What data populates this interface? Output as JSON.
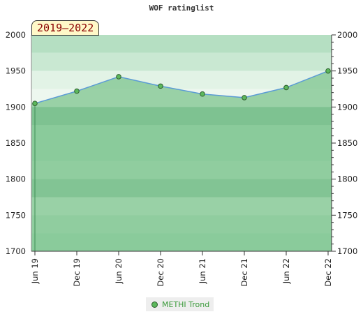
{
  "chart_data": {
    "type": "line",
    "title": "WOF ratinglist",
    "period_label": "2019–2022",
    "x": [
      "Jun 19",
      "Dec 19",
      "Jun 20",
      "Dec 20",
      "Jun 21",
      "Dec 21",
      "Jun 22",
      "Dec 22"
    ],
    "series": [
      {
        "name": "METHI Trond",
        "values": [
          1905,
          1922,
          1942,
          1929,
          1918,
          1913,
          1927,
          1950
        ]
      }
    ],
    "ylim": [
      1700,
      2000
    ],
    "yticks": [
      1700,
      1750,
      1800,
      1850,
      1900,
      1950,
      2000
    ],
    "y_axis_sides": "both",
    "legend_position": "bottom-center",
    "grid": false
  },
  "colors": {
    "series_line": "#5b9bd5",
    "marker_fill": "#5cb85c",
    "marker_stroke": "#2f5f2f",
    "area_fill": "#7cc48e",
    "legend_text": "#3a9a3a",
    "badge_text": "#8b0000",
    "badge_bg": "#fff8c8"
  }
}
